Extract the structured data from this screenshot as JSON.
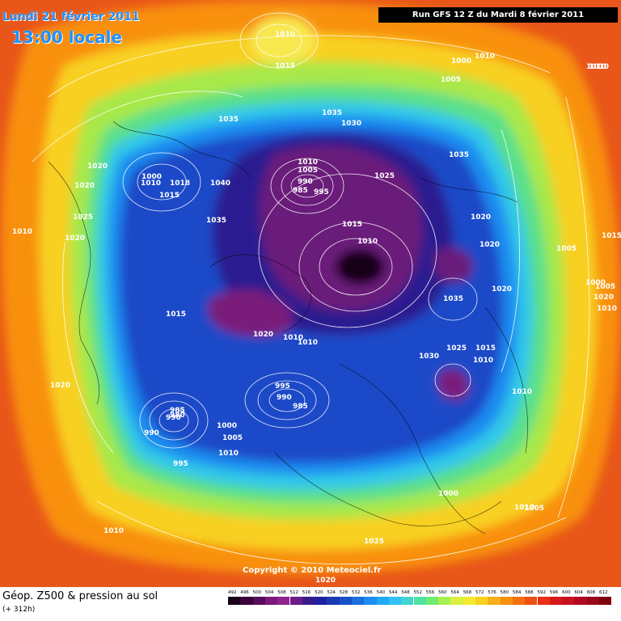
{
  "header": {
    "date": "Lundi 21 février 2011",
    "time": "13:00 locale",
    "run": "Run GFS 12 Z du Mardi 8 février 2011"
  },
  "copyright": "Copyright © 2010 Meteociel.fr",
  "footer": {
    "title": "Géop. Z500 & pression au sol",
    "subtitle": "(+ 312h)"
  },
  "legend": {
    "values": [
      "492",
      "496",
      "500",
      "504",
      "508",
      "512",
      "516",
      "520",
      "524",
      "528",
      "532",
      "536",
      "540",
      "544",
      "548",
      "552",
      "556",
      "560",
      "564",
      "568",
      "572",
      "576",
      "580",
      "584",
      "588",
      "592",
      "596",
      "600",
      "604",
      "608",
      "612"
    ],
    "colors": [
      "#1a001a",
      "#3a003a",
      "#5a0a5a",
      "#7a1a7a",
      "#8e238e",
      "#6a1a8a",
      "#3a1a8a",
      "#2020a0",
      "#1a3ab4",
      "#1a50c8",
      "#1c6ee0",
      "#1e8cf0",
      "#22a8f6",
      "#30c2f2",
      "#40d6d0",
      "#50e2a0",
      "#70ea70",
      "#a8f050",
      "#d8f040",
      "#f4ea30",
      "#f8d020",
      "#f8b018",
      "#f89010",
      "#f47010",
      "#ee5012",
      "#e83014",
      "#d81818",
      "#c81020",
      "#b00a20",
      "#980818",
      "#800010"
    ]
  },
  "pressure_labels": [
    "1010",
    "1015",
    "1000",
    "1010",
    "1005",
    "1010",
    "1035",
    "1035",
    "1030",
    "1035",
    "1020",
    "1000",
    "1010",
    "1018",
    "1015",
    "1040",
    "1020",
    "1025",
    "1035",
    "1010",
    "1005",
    "990",
    "985",
    "995",
    "1025",
    "1020",
    "1020",
    "1010",
    "1015",
    "1010",
    "1020",
    "1035",
    "1020",
    "1015",
    "1010",
    "995",
    "990",
    "985",
    "1020",
    "1010",
    "1030",
    "1025",
    "1015",
    "1010",
    "1010",
    "985",
    "990",
    "980",
    "1000",
    "1005",
    "995",
    "1010",
    "1020",
    "1005",
    "1000",
    "1015",
    "1025",
    "1020",
    "1000",
    "1010",
    "1010",
    "1005",
    "1010",
    "1020",
    "990",
    "1005",
    "1010"
  ],
  "map_colors": {
    "outer": "#e8561a",
    "orange": "#f89010",
    "yellow": "#f8d020",
    "light_green": "#a8e84a",
    "green": "#5ce08a",
    "cyan": "#30c8e8",
    "light_blue": "#1e8cf0",
    "blue": "#1a4ac8",
    "deep_blue": "#2a1a90",
    "purple": "#6a1a7a",
    "dark": "#140014"
  }
}
